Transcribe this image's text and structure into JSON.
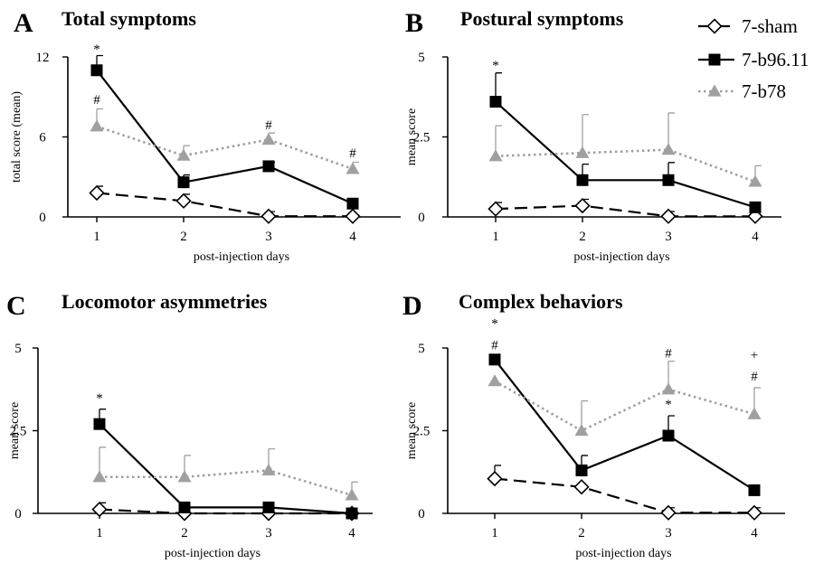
{
  "legend": {
    "entries": [
      {
        "label": "7-sham",
        "color": "#000000",
        "marker": "diamond-open",
        "dash": "dashed"
      },
      {
        "label": "7-b96.11",
        "color": "#000000",
        "marker": "square-filled",
        "dash": "solid"
      },
      {
        "label": "7-b78",
        "color": "#a0a0a0",
        "marker": "triangle-filled",
        "dash": "dotted"
      }
    ]
  },
  "chart_data": [
    {
      "type": "line",
      "letter": "A",
      "title": "Total symptoms",
      "xlabel": "post-injection days",
      "ylabel": "total score (mean)",
      "categories": [
        "1",
        "2",
        "3",
        "4"
      ],
      "ylim": [
        0,
        12
      ],
      "yticks": [
        0,
        6,
        12
      ],
      "ytick_labels": [
        "0",
        "6",
        "12"
      ],
      "series": [
        {
          "name": "7-sham",
          "values": [
            1.8,
            1.2,
            0.05,
            0.05
          ],
          "errors": [
            0.5,
            0.5,
            0.35,
            0.0
          ]
        },
        {
          "name": "7-b96.11",
          "values": [
            11.0,
            2.6,
            3.8,
            1.0
          ],
          "errors": [
            1.1,
            0.55,
            0.3,
            0.0
          ]
        },
        {
          "name": "7-b78",
          "values": [
            6.8,
            4.6,
            5.8,
            3.6
          ],
          "errors": [
            1.3,
            0.75,
            0.5,
            0.5
          ]
        }
      ],
      "annotations": [
        {
          "text": "*",
          "x": "1",
          "y": 12.6
        },
        {
          "text": "#",
          "x": "1",
          "y": 8.8
        },
        {
          "text": "#",
          "x": "3",
          "y": 6.9
        },
        {
          "text": "#",
          "x": "4",
          "y": 4.8
        }
      ]
    },
    {
      "type": "line",
      "letter": "B",
      "title": "Postural symptoms",
      "xlabel": "post-injection days",
      "ylabel": "mean score",
      "categories": [
        "1",
        "2",
        "3",
        "4"
      ],
      "ylim": [
        0,
        5
      ],
      "yticks": [
        0,
        2.5,
        5
      ],
      "ytick_labels": [
        "0",
        "2.5",
        "5"
      ],
      "series": [
        {
          "name": "7-sham",
          "values": [
            0.25,
            0.35,
            0.02,
            0.02
          ],
          "errors": [
            0.2,
            0.2,
            0.15,
            0.0
          ]
        },
        {
          "name": "7-b96.11",
          "values": [
            3.6,
            1.15,
            1.15,
            0.3
          ],
          "errors": [
            0.9,
            0.5,
            0.55,
            0.0
          ]
        },
        {
          "name": "7-b78",
          "values": [
            1.9,
            2.0,
            2.1,
            1.1
          ],
          "errors": [
            0.95,
            1.2,
            1.15,
            0.5
          ]
        }
      ],
      "annotations": [
        {
          "text": "*",
          "x": "1",
          "y": 4.75
        }
      ]
    },
    {
      "type": "line",
      "letter": "C",
      "title": "Locomotor asymmetries",
      "xlabel": "post-injection days",
      "ylabel": "mean score",
      "categories": [
        "1",
        "2",
        "3",
        "4"
      ],
      "ylim": [
        0,
        5
      ],
      "yticks": [
        0,
        2.5,
        5
      ],
      "ytick_labels": [
        "0",
        "2.5",
        "5"
      ],
      "series": [
        {
          "name": "7-sham",
          "values": [
            0.12,
            0.0,
            0.0,
            0.0
          ],
          "errors": [
            0.2,
            0.0,
            0.0,
            0.0
          ]
        },
        {
          "name": "7-b96.11",
          "values": [
            2.7,
            0.18,
            0.18,
            0.0
          ],
          "errors": [
            0.45,
            0.0,
            0.0,
            0.0
          ]
        },
        {
          "name": "7-b78",
          "values": [
            1.1,
            1.1,
            1.3,
            0.55
          ],
          "errors": [
            0.9,
            0.65,
            0.65,
            0.4
          ]
        }
      ],
      "annotations": [
        {
          "text": "*",
          "x": "1",
          "y": 3.5
        }
      ]
    },
    {
      "type": "line",
      "letter": "D",
      "title": "Complex behaviors",
      "xlabel": "post-injection days",
      "ylabel": "mean score",
      "categories": [
        "1",
        "2",
        "3",
        "4"
      ],
      "ylim": [
        0,
        5
      ],
      "yticks": [
        0,
        2.5,
        5
      ],
      "ytick_labels": [
        "0",
        "2.5",
        "5"
      ],
      "series": [
        {
          "name": "7-sham",
          "values": [
            1.05,
            0.8,
            0.02,
            0.02
          ],
          "errors": [
            0.4,
            0.0,
            0.15,
            0.15
          ]
        },
        {
          "name": "7-b96.11",
          "values": [
            4.65,
            1.3,
            2.35,
            0.7
          ],
          "errors": [
            0.0,
            0.45,
            0.6,
            0.0
          ]
        },
        {
          "name": "7-b78",
          "values": [
            4.0,
            2.5,
            3.75,
            3.0
          ],
          "errors": [
            0.0,
            0.9,
            0.85,
            0.8
          ]
        }
      ],
      "annotations": [
        {
          "text": "*",
          "x": "1",
          "y": 5.75
        },
        {
          "text": "#",
          "x": "1",
          "y": 5.1
        },
        {
          "text": "#",
          "x": "3",
          "y": 4.85
        },
        {
          "text": "*",
          "x": "3",
          "y": 3.3
        },
        {
          "text": "+",
          "x": "4",
          "y": 4.8
        },
        {
          "text": "#",
          "x": "4",
          "y": 4.15
        }
      ]
    }
  ]
}
